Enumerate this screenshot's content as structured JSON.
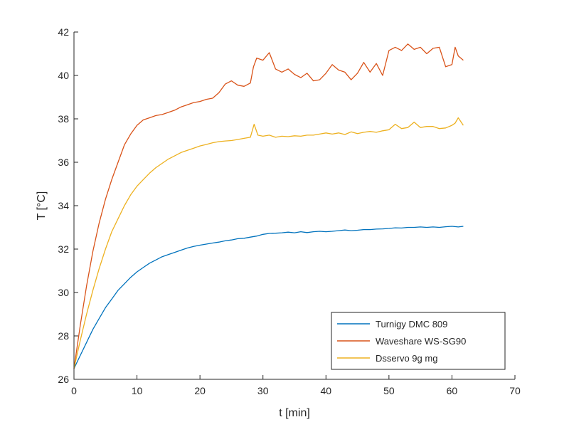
{
  "chart_data": {
    "type": "line",
    "title": "",
    "xlabel": "t [min]",
    "ylabel": "T [°C]",
    "xlim": [
      0,
      70
    ],
    "ylim": [
      26,
      42
    ],
    "xticks": [
      0,
      10,
      20,
      30,
      40,
      50,
      60,
      70
    ],
    "yticks": [
      26,
      28,
      30,
      32,
      34,
      36,
      38,
      40,
      42
    ],
    "grid": false,
    "legend_position": "bottom-right",
    "series": [
      {
        "name": "Turnigy DMC 809",
        "color": "#0072BD",
        "x": [
          0,
          1,
          2,
          3,
          4,
          5,
          6,
          7,
          8,
          9,
          10,
          11,
          12,
          13,
          14,
          15,
          16,
          17,
          18,
          19,
          20,
          21,
          22,
          23,
          24,
          25,
          26,
          27,
          28,
          29,
          30,
          31,
          32,
          33,
          34,
          35,
          36,
          37,
          38,
          39,
          40,
          41,
          42,
          43,
          44,
          45,
          46,
          47,
          48,
          49,
          50,
          51,
          52,
          53,
          54,
          55,
          56,
          57,
          58,
          59,
          60,
          61,
          61.8
        ],
        "y": [
          26.5,
          27.1,
          27.7,
          28.3,
          28.8,
          29.3,
          29.7,
          30.1,
          30.4,
          30.7,
          30.95,
          31.15,
          31.35,
          31.5,
          31.65,
          31.75,
          31.85,
          31.95,
          32.05,
          32.12,
          32.18,
          32.23,
          32.28,
          32.32,
          32.38,
          32.42,
          32.48,
          32.5,
          32.55,
          32.6,
          32.68,
          32.72,
          32.73,
          32.75,
          32.78,
          32.75,
          32.8,
          32.76,
          32.8,
          32.82,
          32.8,
          32.82,
          32.85,
          32.88,
          32.85,
          32.87,
          32.9,
          32.9,
          32.92,
          32.93,
          32.95,
          32.98,
          32.97,
          33.0,
          33.0,
          33.02,
          33.0,
          33.02,
          33.0,
          33.03,
          33.05,
          33.02,
          33.05
        ]
      },
      {
        "name": "Waveshare WS-SG90",
        "color": "#D95319",
        "x": [
          0,
          1,
          2,
          3,
          4,
          5,
          6,
          7,
          8,
          9,
          10,
          11,
          12,
          13,
          14,
          15,
          16,
          17,
          18,
          19,
          20,
          21,
          22,
          23,
          24,
          25,
          26,
          27,
          28,
          28.5,
          29,
          30,
          31,
          32,
          33,
          34,
          35,
          36,
          37,
          38,
          39,
          40,
          41,
          42,
          43,
          44,
          45,
          46,
          47,
          48,
          49,
          50,
          51,
          52,
          53,
          54,
          55,
          56,
          57,
          58,
          59,
          60,
          60.5,
          61,
          61.8
        ],
        "y": [
          26.5,
          28.5,
          30.3,
          31.9,
          33.2,
          34.3,
          35.2,
          36.0,
          36.8,
          37.3,
          37.7,
          37.95,
          38.05,
          38.15,
          38.2,
          38.3,
          38.4,
          38.55,
          38.65,
          38.75,
          38.8,
          38.9,
          38.95,
          39.2,
          39.6,
          39.75,
          39.55,
          39.5,
          39.65,
          40.4,
          40.8,
          40.7,
          41.05,
          40.3,
          40.15,
          40.3,
          40.05,
          39.9,
          40.1,
          39.75,
          39.8,
          40.1,
          40.5,
          40.25,
          40.15,
          39.8,
          40.1,
          40.6,
          40.15,
          40.55,
          40.0,
          41.15,
          41.3,
          41.15,
          41.45,
          41.2,
          41.3,
          41.0,
          41.25,
          41.3,
          40.4,
          40.5,
          41.3,
          40.9,
          40.7
        ]
      },
      {
        "name": "Dsservo 9g mg",
        "color": "#EDB120",
        "x": [
          0,
          1,
          2,
          3,
          4,
          5,
          6,
          7,
          8,
          9,
          10,
          11,
          12,
          13,
          14,
          15,
          16,
          17,
          18,
          19,
          20,
          21,
          22,
          23,
          24,
          25,
          26,
          27,
          28,
          28.6,
          29.2,
          30,
          31,
          32,
          33,
          34,
          35,
          36,
          37,
          38,
          39,
          40,
          41,
          42,
          43,
          44,
          45,
          46,
          47,
          48,
          49,
          50,
          51,
          52,
          53,
          54,
          55,
          56,
          57,
          58,
          59,
          60,
          60.5,
          61,
          61.8
        ],
        "y": [
          26.5,
          27.8,
          29.0,
          30.1,
          31.1,
          32.0,
          32.8,
          33.4,
          34.0,
          34.5,
          34.9,
          35.2,
          35.5,
          35.75,
          35.95,
          36.15,
          36.3,
          36.45,
          36.55,
          36.65,
          36.75,
          36.82,
          36.9,
          36.95,
          36.98,
          37.0,
          37.05,
          37.1,
          37.15,
          37.75,
          37.25,
          37.2,
          37.25,
          37.15,
          37.2,
          37.18,
          37.22,
          37.2,
          37.25,
          37.25,
          37.3,
          37.35,
          37.3,
          37.35,
          37.28,
          37.4,
          37.32,
          37.38,
          37.42,
          37.38,
          37.45,
          37.5,
          37.75,
          37.55,
          37.6,
          37.85,
          37.6,
          37.65,
          37.65,
          37.55,
          37.58,
          37.7,
          37.8,
          38.05,
          37.7
        ]
      }
    ]
  }
}
